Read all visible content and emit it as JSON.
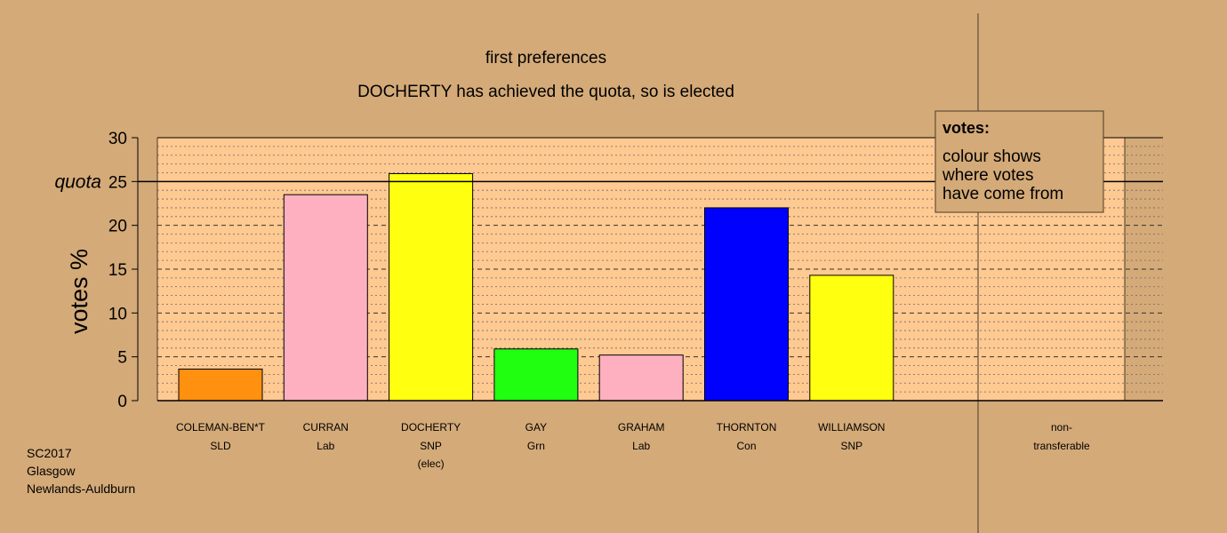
{
  "chart_data": {
    "type": "bar",
    "title": "first preferences",
    "subtitle": "DOCHERTY has achieved the quota, so is elected",
    "ylabel": "votes %",
    "ylim": [
      0,
      30
    ],
    "yticks": [
      "0",
      "5",
      "10",
      "15",
      "20",
      "25",
      "30"
    ],
    "quota": 25,
    "quota_label": "quota",
    "categories": [
      {
        "name": "COLEMAN-BEN*T",
        "party": "SLD",
        "note": "",
        "value": 3.6,
        "color": "#ff9010"
      },
      {
        "name": "CURRAN",
        "party": "Lab",
        "note": "",
        "value": 23.5,
        "color": "#ffb0c0"
      },
      {
        "name": "DOCHERTY",
        "party": "SNP",
        "note": "(elec)",
        "value": 25.9,
        "color": "#ffff10"
      },
      {
        "name": "GAY",
        "party": "Grn",
        "note": "",
        "value": 5.9,
        "color": "#20ff10"
      },
      {
        "name": "GRAHAM",
        "party": "Lab",
        "note": "",
        "value": 5.2,
        "color": "#ffb0c0"
      },
      {
        "name": "THORNTON",
        "party": "Con",
        "note": "",
        "value": 22.0,
        "color": "#0000ff"
      },
      {
        "name": "WILLIAMSON",
        "party": "SNP",
        "note": "",
        "value": 14.3,
        "color": "#ffff10"
      }
    ],
    "nontransferable": {
      "line1": "non-",
      "line2": "transferable",
      "value": 0
    },
    "legend": {
      "title": "votes:",
      "lines": [
        "colour shows",
        "where votes",
        "have come from"
      ],
      "position": "top-right"
    },
    "grid": true
  },
  "footer": {
    "line1": "SC2017",
    "line2": "Glasgow",
    "line3": "Newlands-Auldburn"
  },
  "colors": {
    "background": "#d4aa78",
    "plot_background": "#ffc992"
  }
}
